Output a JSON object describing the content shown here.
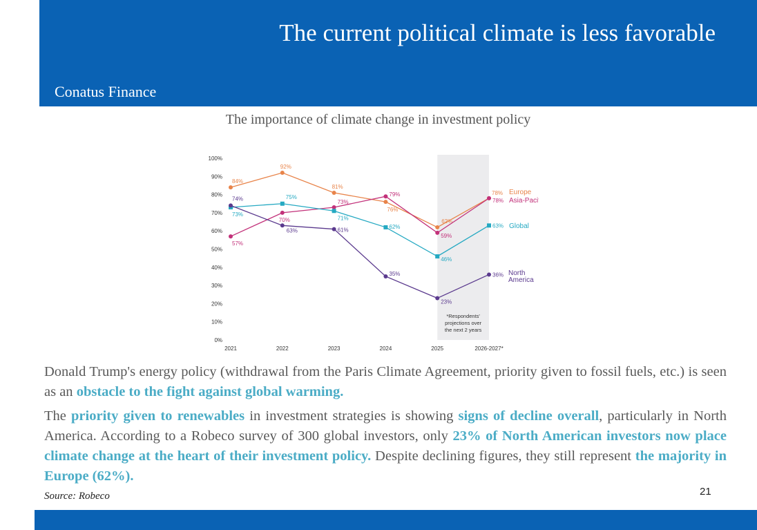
{
  "slide": {
    "title": "The current political climate is less favorable",
    "brand": "Conatus Finance",
    "page_number": "21",
    "source": "Source: Robeco",
    "colors": {
      "header": "#0a62b4",
      "highlight": "#4bacc6",
      "text": "#595959"
    }
  },
  "paragraphs": {
    "p1": [
      {
        "text": "Donald Trump's energy policy (withdrawal from the Paris Climate Agreement, priority given to fossil fuels, etc.) is seen as an ",
        "hl": false
      },
      {
        "text": "obstacle to the fight against global warming.",
        "hl": true
      }
    ],
    "p2": [
      {
        "text": "The ",
        "hl": false
      },
      {
        "text": "priority given to renewables",
        "hl": true
      },
      {
        "text": " in investment strategies is showing ",
        "hl": false
      },
      {
        "text": "signs of decline overall",
        "hl": true
      },
      {
        "text": ", particularly in North America. According to a Robeco survey of 300 global investors, only ",
        "hl": false
      },
      {
        "text": "23% of North American investors now place climate change at the heart of their investment policy.",
        "hl": true
      },
      {
        "text": " Despite declining figures, they still represent ",
        "hl": false
      },
      {
        "text": "the majority in Europe (62%).",
        "hl": true
      }
    ]
  },
  "chart_data": {
    "type": "line",
    "title": "The importance of climate change in investment policy",
    "x": [
      "2021",
      "2022",
      "2023",
      "2024",
      "2025",
      "2026-2027*"
    ],
    "ylim": [
      0,
      100
    ],
    "yticks": [
      0,
      10,
      20,
      30,
      40,
      50,
      60,
      70,
      80,
      90,
      100
    ],
    "ytick_labels": [
      "0%",
      "10%",
      "20%",
      "30%",
      "40%",
      "50%",
      "60%",
      "70%",
      "80%",
      "90%",
      "100%"
    ],
    "grid": false,
    "legend": "right",
    "shaded_region": {
      "from": "2025",
      "to": "2026-2027*",
      "note": "*Respondents' projections over the next 2 years"
    },
    "series": [
      {
        "name": "Europe",
        "color": "#e8844a",
        "marker": "circle",
        "values": [
          84,
          92,
          81,
          76,
          62,
          78
        ],
        "labels": [
          "84%",
          "92%",
          "81%",
          "76%",
          "62%",
          "78%"
        ]
      },
      {
        "name": "Asia-Pacific",
        "color": "#c2317a",
        "marker": "circle",
        "values": [
          57,
          70,
          73,
          79,
          59,
          78
        ],
        "labels": [
          "57%",
          "70%",
          "73%",
          "79%",
          "59%",
          "78%"
        ]
      },
      {
        "name": "Global",
        "color": "#25a9c2",
        "marker": "square",
        "values": [
          73,
          75,
          71,
          62,
          46,
          63
        ],
        "labels": [
          "73%",
          "75%",
          "71%",
          "62%",
          "46%",
          "63%"
        ]
      },
      {
        "name": "North America",
        "color": "#5b3a8e",
        "marker": "circle",
        "values": [
          74,
          63,
          61,
          35,
          23,
          36
        ],
        "labels": [
          "74%",
          "63%",
          "61%",
          "35%",
          "23%",
          "36%"
        ]
      }
    ]
  }
}
